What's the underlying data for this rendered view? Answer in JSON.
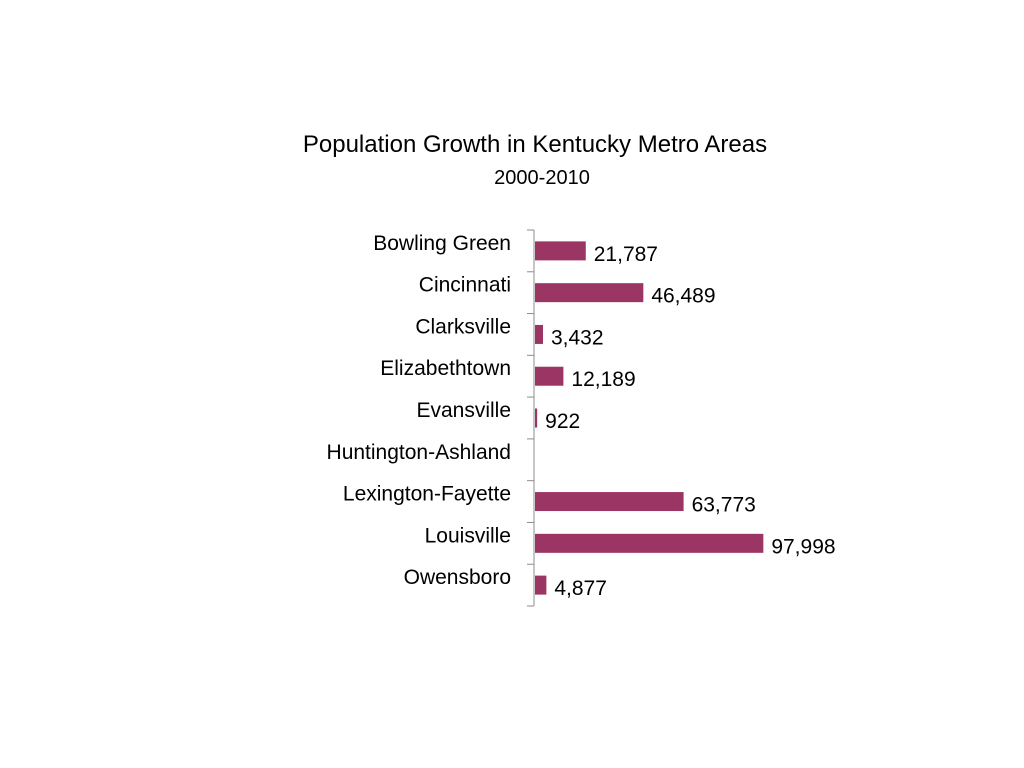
{
  "chart_data": {
    "type": "bar",
    "orientation": "horizontal",
    "title": "Population Growth in Kentucky Metro Areas",
    "subtitle": "2000-2010",
    "xlabel": "",
    "ylabel": "",
    "categories": [
      "Bowling Green",
      "Cincinnati",
      "Clarksville",
      "Elizabethtown",
      "Evansville",
      "Huntington-Ashland",
      "Lexington-Fayette",
      "Louisville",
      "Owensboro"
    ],
    "values": [
      21787,
      46489,
      3432,
      12189,
      922,
      null,
      63773,
      97998,
      4877
    ],
    "data_labels": [
      "21,787",
      "46,489",
      "3,432",
      "12,189",
      "922",
      "",
      "63,773",
      "97,998",
      "4,877"
    ],
    "xlim": [
      0,
      100000
    ],
    "grid": false,
    "legend": "none",
    "bar_color": "#9B3563",
    "axis_color": "#8C8C8C"
  }
}
